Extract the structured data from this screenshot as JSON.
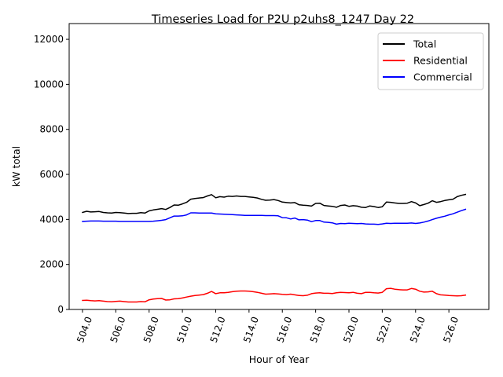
{
  "chart_data": {
    "type": "line",
    "title": "Timeseries Load for P2U p2uhs8_1247  Day 22",
    "xlabel": "Hour of Year",
    "ylabel": "kW total",
    "xlim": [
      503.2,
      528.4
    ],
    "ylim": [
      0,
      12700
    ],
    "grid": false,
    "legend_location": "top-right",
    "xticks": [
      504,
      506,
      508,
      510,
      512,
      514,
      516,
      518,
      520,
      522,
      524,
      526
    ],
    "xtick_labels": [
      "504.0",
      "506.0",
      "508.0",
      "510.0",
      "512.0",
      "514.0",
      "516.0",
      "518.0",
      "520.0",
      "522.0",
      "524.0",
      "526.0"
    ],
    "yticks": [
      0,
      2000,
      4000,
      6000,
      8000,
      10000,
      12000
    ],
    "ytick_labels": [
      "0",
      "2000",
      "4000",
      "6000",
      "8000",
      "10000",
      "12000"
    ],
    "x_start": 504.0,
    "x_step": 0.25,
    "series": [
      {
        "name": "Total",
        "color": "#000000",
        "values": [
          4310,
          4360,
          4330,
          4340,
          4350,
          4310,
          4290,
          4280,
          4310,
          4300,
          4280,
          4260,
          4270,
          4270,
          4300,
          4280,
          4380,
          4420,
          4450,
          4480,
          4440,
          4530,
          4640,
          4630,
          4690,
          4760,
          4900,
          4930,
          4950,
          4970,
          5040,
          5100,
          4960,
          5010,
          4990,
          5030,
          5020,
          5040,
          5020,
          5020,
          5000,
          4980,
          4950,
          4890,
          4850,
          4860,
          4880,
          4840,
          4770,
          4750,
          4730,
          4750,
          4650,
          4630,
          4620,
          4590,
          4710,
          4720,
          4620,
          4600,
          4580,
          4540,
          4620,
          4640,
          4580,
          4610,
          4590,
          4540,
          4530,
          4600,
          4570,
          4530,
          4560,
          4770,
          4760,
          4730,
          4710,
          4710,
          4720,
          4790,
          4730,
          4610,
          4660,
          4720,
          4830,
          4760,
          4790,
          4840,
          4870,
          4900,
          5010,
          5070,
          5110
        ]
      },
      {
        "name": "Residential",
        "color": "#ff0000",
        "values": [
          400,
          410,
          390,
          380,
          390,
          370,
          350,
          340,
          360,
          370,
          350,
          330,
          330,
          330,
          350,
          340,
          430,
          460,
          480,
          490,
          420,
          430,
          470,
          480,
          510,
          550,
          590,
          620,
          640,
          660,
          720,
          800,
          700,
          740,
          740,
          760,
          790,
          810,
          820,
          820,
          810,
          790,
          760,
          720,
          680,
          690,
          700,
          690,
          670,
          660,
          680,
          650,
          620,
          610,
          630,
          700,
          730,
          740,
          720,
          720,
          710,
          740,
          760,
          750,
          740,
          760,
          720,
          700,
          760,
          760,
          740,
          730,
          760,
          920,
          940,
          900,
          880,
          870,
          870,
          930,
          900,
          810,
          770,
          780,
          810,
          700,
          650,
          640,
          620,
          610,
          600,
          610,
          640
        ]
      },
      {
        "name": "Commercial",
        "color": "#0000ff",
        "values": [
          3910,
          3920,
          3930,
          3930,
          3930,
          3920,
          3920,
          3920,
          3920,
          3910,
          3910,
          3910,
          3910,
          3910,
          3910,
          3910,
          3910,
          3920,
          3940,
          3960,
          3990,
          4070,
          4150,
          4150,
          4160,
          4200,
          4290,
          4290,
          4280,
          4280,
          4280,
          4280,
          4250,
          4240,
          4230,
          4220,
          4210,
          4200,
          4190,
          4180,
          4180,
          4180,
          4180,
          4180,
          4170,
          4170,
          4170,
          4160,
          4080,
          4070,
          4020,
          4060,
          3980,
          3990,
          3970,
          3900,
          3950,
          3950,
          3880,
          3870,
          3850,
          3790,
          3820,
          3810,
          3830,
          3820,
          3810,
          3820,
          3800,
          3790,
          3790,
          3780,
          3800,
          3830,
          3820,
          3830,
          3830,
          3830,
          3830,
          3840,
          3820,
          3840,
          3880,
          3930,
          3990,
          4050,
          4100,
          4140,
          4200,
          4250,
          4320,
          4390,
          4450
        ]
      }
    ]
  }
}
